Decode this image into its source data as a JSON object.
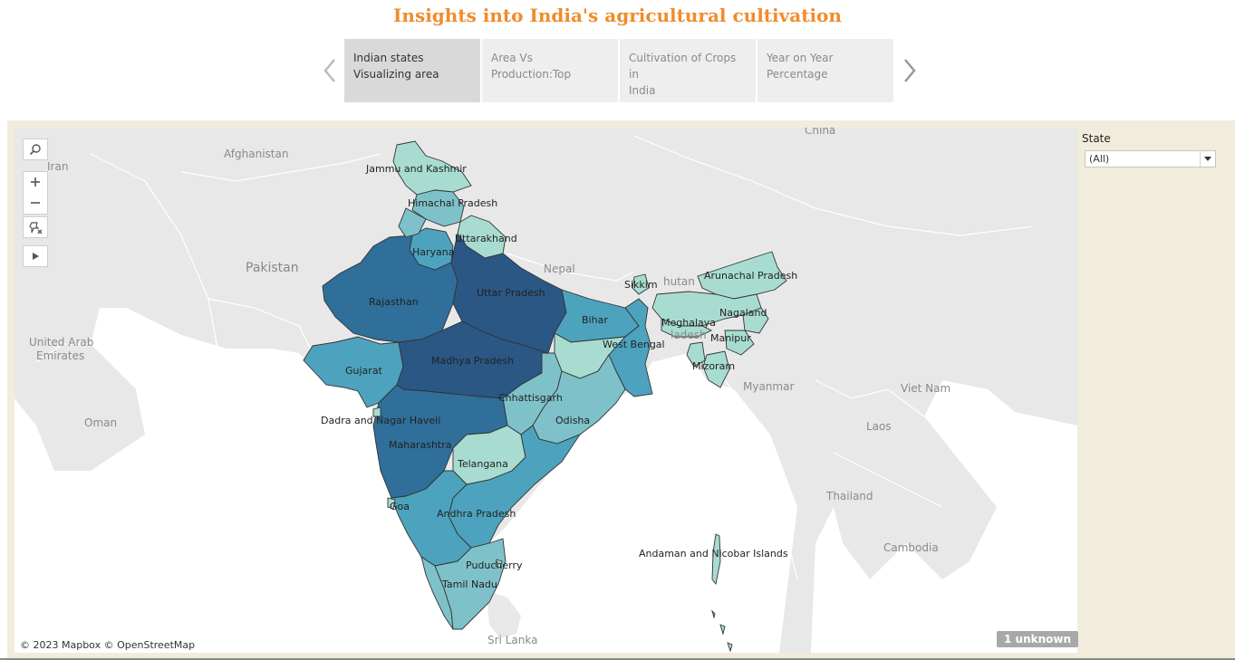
{
  "header": {
    "title": "Insights into India's agricultural cultivation",
    "title_color": "#f08c2c"
  },
  "story_tabs": [
    {
      "label": "Indian states\nVisualizing area",
      "active": true
    },
    {
      "label": "Area Vs\nProduction:Top",
      "active": false
    },
    {
      "label": "Cultivation of Crops in\nIndia",
      "active": false
    },
    {
      "label": "Year on Year\nPercentage",
      "active": false
    }
  ],
  "nav": {
    "prev_icon": "chevron-left-icon",
    "next_icon": "chevron-right-icon"
  },
  "map": {
    "map_controls": [
      "search-icon",
      "zoom-in-icon",
      "zoom-out-icon",
      "pin-reset-icon",
      "play-icon"
    ],
    "colors": {
      "lowest": "#a8dcd1",
      "low": "#7fc1c9",
      "mid": "#4da3bd",
      "high": "#2f6f99",
      "highest": "#2b5785",
      "land": "#e8e8e8",
      "water": "#ffffff"
    },
    "countries": [
      "China",
      "Iran",
      "Afghanistan",
      "Pakistan",
      "Nepal",
      "Bhutan",
      "Bangladesh",
      "Myanmar",
      "Viet Nam",
      "Laos",
      "Thailand",
      "Cambodia",
      "Sri Lanka",
      "United Arab Emirates",
      "Oman"
    ],
    "country_labels": {
      "china": "China",
      "iran": "Iran",
      "afghanistan": "Afghanistan",
      "pakistan": "Pakistan",
      "nepal": "Nepal",
      "bhutan": "hutan",
      "bangladesh": "ladesh",
      "myanmar": "Myanmar",
      "vietnam": "Viet Nam",
      "laos": "Laos",
      "thailand": "Thailand",
      "cambodia": "Cambodia",
      "srilanka": "Sri Lanka",
      "uae_1": "United Arab",
      "uae_2": "Emirates",
      "oman": "Oman"
    },
    "states": {
      "jk": "Jammu and Kashmir",
      "hp": "Himachal Pradesh",
      "uk": "Uttarakhand",
      "hr": "Haryana",
      "rj": "Rajasthan",
      "up": "Uttar Pradesh",
      "bh": "Bihar",
      "sk": "Sikkim",
      "ar": "Arunachal Pradesh",
      "nl": "Nagaland",
      "ml": "Meghalaya",
      "mn": "Manipur",
      "mz": "Mizoram",
      "wb": "West Bengal",
      "gj": "Gujarat",
      "mp": "Madhya Pradesh",
      "cg": "Chhattisgarh",
      "od": "Odisha",
      "dn": "Dadra and Nagar Haveli",
      "mh": "Maharashtra",
      "tg": "Telangana",
      "ga": "Goa",
      "ap": "Andhra Pradesh",
      "an": "Andaman and Nicobar Islands",
      "py": "Puducherry",
      "tn": "Tamil Nadu"
    },
    "attribution": "© 2023 Mapbox © OpenStreetMap",
    "unknown_badge": "1 unknown"
  },
  "filter": {
    "label": "State",
    "value": "(All)",
    "caret_icon": "caret-down-icon"
  }
}
